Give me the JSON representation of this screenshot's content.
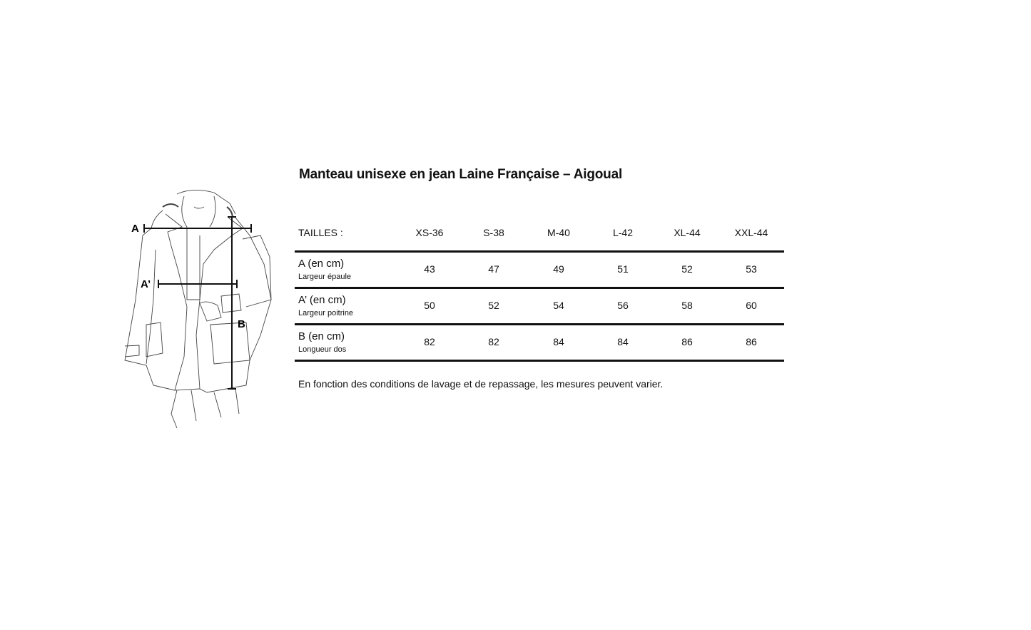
{
  "title": "Manteau unisexe en jean Laine Française – Aigoual",
  "illustration": {
    "labels": {
      "a": "A",
      "a_prime": "A’",
      "b": "B"
    }
  },
  "table": {
    "header_label": "TAILLES :",
    "sizes": [
      "XS-36",
      "S-38",
      "M-40",
      "L-42",
      "XL-44",
      "XXL-44"
    ],
    "rows": [
      {
        "label": "A (en cm)",
        "sublabel": "Largeur épaule",
        "values": [
          "43",
          "47",
          "49",
          "51",
          "52",
          "53"
        ]
      },
      {
        "label": "A’ (en cm)",
        "sublabel": "Largeur poitrine",
        "values": [
          "50",
          "52",
          "54",
          "56",
          "58",
          "60"
        ]
      },
      {
        "label": "B (en cm)",
        "sublabel": "Longueur dos",
        "values": [
          "82",
          "82",
          "84",
          "84",
          "86",
          "86"
        ]
      }
    ]
  },
  "note": "En fonction des conditions de lavage et de repassage, les mesures peuvent varier."
}
